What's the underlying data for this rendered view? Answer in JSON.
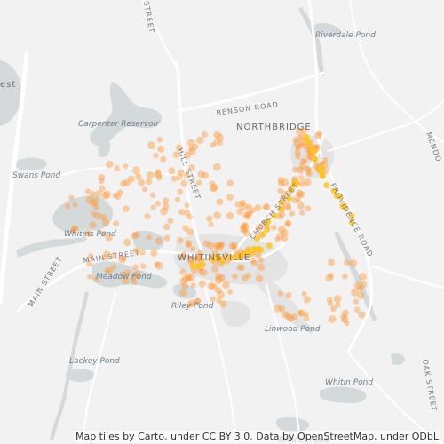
{
  "map": {
    "attribution": "Map tiles by Carto, under CC BY 3.0. Data by OpenStreetMap, under ODbL",
    "water_color": "#d4dadc",
    "road_color": "#ffffff",
    "urban_color": "#e2e2e2",
    "point_color": "#ff9a3c",
    "hot_color": "#ffc21a",
    "labels": {
      "riverdale_pond": "Riverdale Pond",
      "benson_road": "BENSON ROAD",
      "northbridge": "NORTHBRIDGE",
      "carpenter_reservoir": "Carpenter Reservoir",
      "swans_pond": "Swans Pond",
      "hill_street": "HILL STREET",
      "church_street": "CHURCH STREET",
      "providence_road": "PROVIDENCE ROAD",
      "whitins_pond_west": "Whitins Pond",
      "main_street_a": "MAIN STREET",
      "main_street_b": "MAIN STREET",
      "whitinsville": "WHITINSVILLE",
      "meadow_pond": "Meadow Pond",
      "riley_pond": "Riley Pond",
      "linwood_pond": "Linwood Pond",
      "lackey_pond": "Lackey Pond",
      "whitin_pond": "Whitin Pond",
      "street_top": "STREET",
      "oak_street": "OAK STREET",
      "mendon": "MENDO",
      "est": "est",
      "rivulet_pond": "Rivulet Pond"
    }
  }
}
